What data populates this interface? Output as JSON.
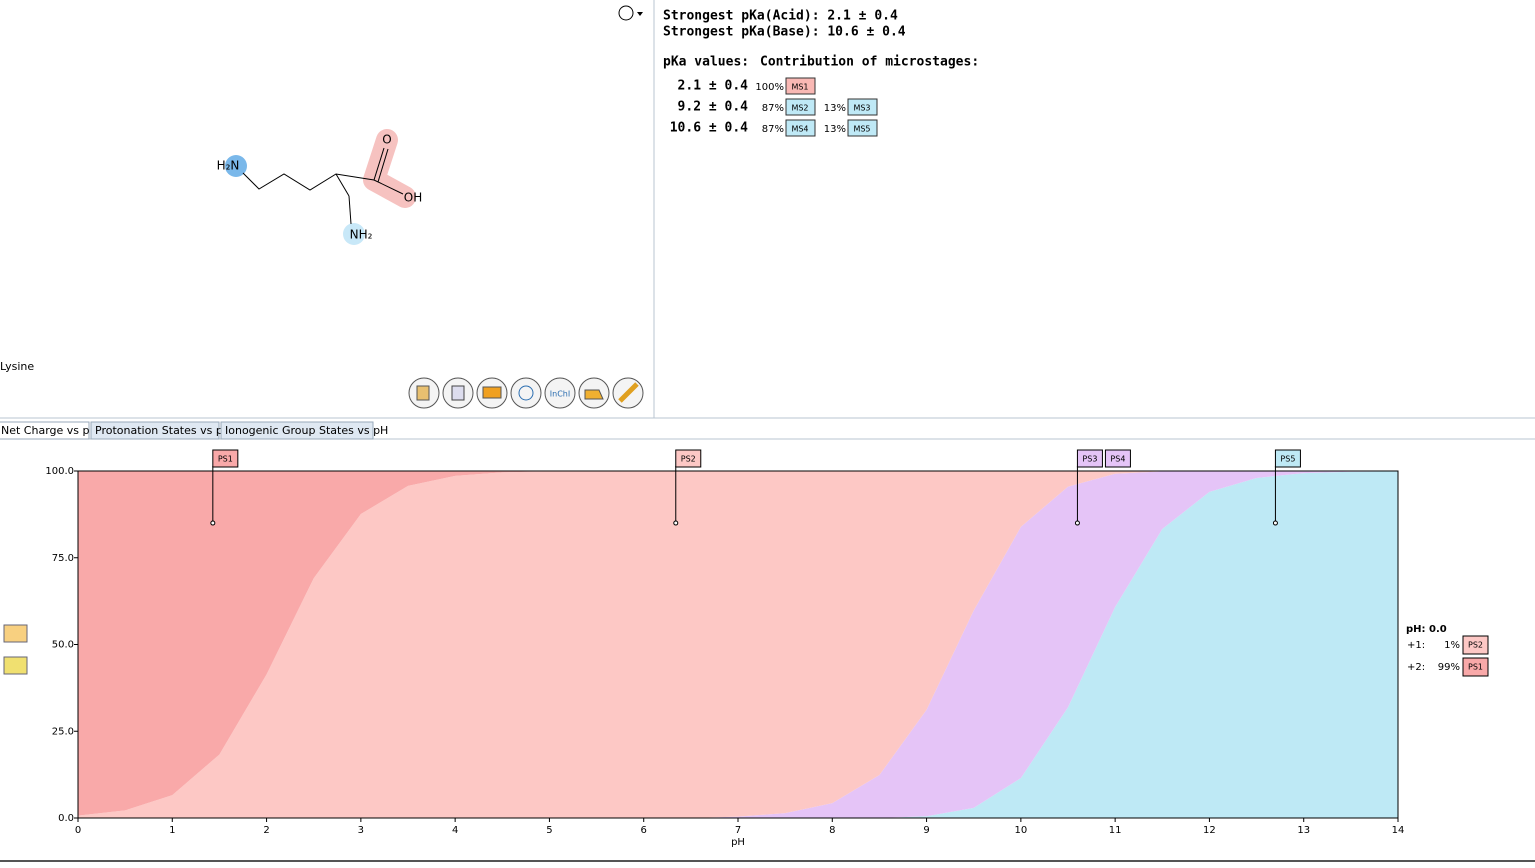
{
  "molecule": {
    "name": "Lysine",
    "atoms": [
      "H₂N",
      "NH₂",
      "O",
      "OH"
    ],
    "toolbar_label": "InChI"
  },
  "pka_summary": {
    "acid": "Strongest pKa(Acid): 2.1 ± 0.4",
    "base": "Strongest pKa(Base): 10.6 ± 0.4"
  },
  "pka_table": {
    "headers": [
      "pKa values:",
      "Contribution of microstages:"
    ],
    "rows": [
      {
        "pka": "2.1 ± 0.4",
        "contributions": [
          {
            "percent": "100%",
            "ms": "MS1"
          }
        ]
      },
      {
        "pka": "9.2 ± 0.4",
        "contributions": [
          {
            "percent": "87%",
            "ms": "MS2"
          },
          {
            "percent": "13%",
            "ms": "MS3"
          }
        ]
      },
      {
        "pka": "10.6 ± 0.4",
        "contributions": [
          {
            "percent": "87%",
            "ms": "MS4"
          },
          {
            "percent": "13%",
            "ms": "MS5"
          }
        ]
      }
    ]
  },
  "tabs": [
    "Net Charge vs pH",
    "Protonation States vs pH",
    "Ionogenic Group States vs pH"
  ],
  "chart_data": {
    "type": "area",
    "stacked": true,
    "x_label": "pH",
    "x": [
      0,
      0.5,
      1,
      1.5,
      2,
      2.5,
      3,
      3.5,
      4,
      4.5,
      5,
      5.5,
      6,
      6.5,
      7,
      7.5,
      8,
      8.5,
      9,
      9.5,
      10,
      10.5,
      11,
      11.5,
      12,
      12.5,
      13,
      13.5,
      14
    ],
    "xlim": [
      0,
      14
    ],
    "xticks": [
      0,
      1,
      2,
      3,
      4,
      5,
      6,
      7,
      8,
      9,
      10,
      11,
      12,
      13,
      14
    ],
    "ylim": [
      0,
      100
    ],
    "yticks": [
      {
        "value": 0,
        "label": "0.0"
      },
      {
        "value": 25,
        "label": "25.0"
      },
      {
        "value": 50,
        "label": "50.0"
      },
      {
        "value": 75,
        "label": "75.0"
      },
      {
        "value": 100,
        "label": "100.0"
      }
    ],
    "series": [
      {
        "name": "PS1",
        "color": "#f9a9a9",
        "values": [
          99.3,
          97.8,
          93.4,
          81.7,
          58.6,
          30.9,
          12.4,
          4.3,
          1.4,
          0.4,
          0.1,
          0,
          0,
          0,
          0,
          0,
          0,
          0,
          0,
          0,
          0,
          0,
          0,
          0,
          0,
          0,
          0,
          0,
          0
        ]
      },
      {
        "name": "PS2",
        "color": "#fdc8c5",
        "values": [
          0.7,
          2.2,
          6.6,
          18.3,
          41.4,
          69.1,
          87.6,
          95.7,
          98.6,
          99.6,
          99.9,
          100,
          100,
          100,
          99.6,
          98.6,
          95.7,
          87.6,
          68.8,
          40.3,
          16.2,
          4.5,
          0.9,
          0.1,
          0,
          0,
          0,
          0,
          0
        ]
      },
      {
        "name": "PS3",
        "color": "#e5c4f7",
        "values": [
          0,
          0,
          0,
          0,
          0,
          0,
          0,
          0,
          0,
          0,
          0,
          0,
          0,
          0,
          0.4,
          1.4,
          4.3,
          12.4,
          30.7,
          56.9,
          72.4,
          63.6,
          38.4,
          16.6,
          6.0,
          2.0,
          0.6,
          0.2,
          0.1
        ]
      },
      {
        "name": "PS5",
        "color": "#bee9f5",
        "values": [
          0,
          0,
          0,
          0,
          0,
          0,
          0,
          0,
          0,
          0,
          0,
          0,
          0,
          0,
          0,
          0,
          0,
          0,
          0.5,
          2.9,
          11.5,
          31.9,
          60.8,
          83.3,
          94.0,
          98.0,
          99.4,
          99.8,
          99.9
        ]
      }
    ],
    "markers": [
      {
        "label": "PS1",
        "x": 1.43,
        "y": 85,
        "color": "#f9a9a9"
      },
      {
        "label": "PS2",
        "x": 6.34,
        "y": 85,
        "color": "#fdc8c5"
      },
      {
        "label": "PS3",
        "x": 10.6,
        "y": 85,
        "color": "#e5c4f7"
      },
      {
        "label": "PS4",
        "color": "#e5c4f7"
      },
      {
        "label": "PS5",
        "x": 12.7,
        "y": 85,
        "color": "#bee9f5"
      }
    ],
    "readout": {
      "title": "pH: 0.0",
      "rows": [
        {
          "charge": "+1:",
          "percent": "1%",
          "state": "PS2",
          "color": "#fdc8c5"
        },
        {
          "charge": "+2:",
          "percent": "99%",
          "state": "PS1",
          "color": "#f9a9a9"
        }
      ]
    }
  }
}
